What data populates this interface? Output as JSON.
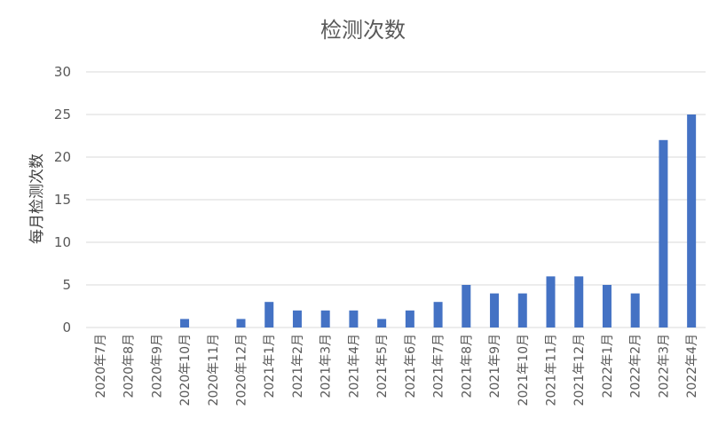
{
  "chart_data": {
    "type": "bar",
    "title": "检测次数",
    "xlabel": "",
    "ylabel": "每月检测次数",
    "categories": [
      "2020年7月",
      "2020年8月",
      "2020年9月",
      "2020年10月",
      "2020年11月",
      "2020年12月",
      "2021年1月",
      "2021年2月",
      "2021年3月",
      "2021年4月",
      "2021年5月",
      "2021年6月",
      "2021年7月",
      "2021年8月",
      "2021年9月",
      "2021年10月",
      "2021年11月",
      "2021年12月",
      "2022年1月",
      "2022年2月",
      "2022年3月",
      "2022年4月"
    ],
    "values": [
      0,
      0,
      0,
      1,
      0,
      1,
      3,
      2,
      2,
      2,
      1,
      2,
      3,
      5,
      4,
      4,
      6,
      6,
      5,
      4,
      22,
      25
    ],
    "ylim": [
      0,
      30
    ],
    "yticks": [
      0,
      5,
      10,
      15,
      20,
      25,
      30
    ],
    "grid": true,
    "legend": "none",
    "bar_color": "#4472C4",
    "grid_color": "#D9D9D9"
  }
}
